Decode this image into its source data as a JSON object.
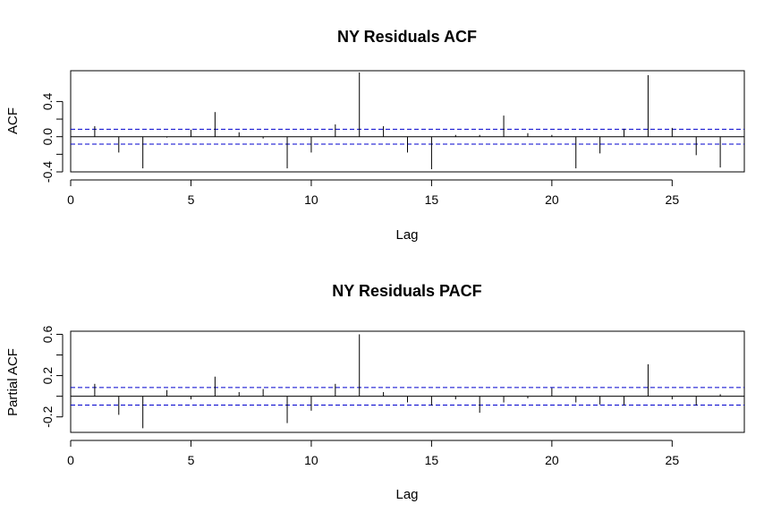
{
  "chart_data": [
    {
      "type": "bar",
      "title": "NY Residuals ACF",
      "xlabel": "Lag",
      "ylabel": "ACF",
      "xlim": [
        0,
        28
      ],
      "ylim": [
        -0.4,
        0.75
      ],
      "x_ticks": [
        "0",
        "5",
        "10",
        "15",
        "20",
        "25"
      ],
      "y_ticks": [
        "-0.4",
        "0.0",
        "0.4"
      ],
      "confidence_bound": 0.085,
      "confidence_color": "#0000cd",
      "x": [
        1,
        2,
        3,
        4,
        5,
        6,
        7,
        8,
        9,
        10,
        11,
        12,
        13,
        14,
        15,
        16,
        17,
        18,
        19,
        20,
        21,
        22,
        23,
        24,
        25,
        26,
        27
      ],
      "values": [
        0.12,
        -0.18,
        -0.36,
        -0.01,
        0.08,
        0.28,
        0.05,
        -0.02,
        -0.36,
        -0.18,
        0.14,
        0.73,
        0.12,
        -0.18,
        -0.37,
        0.02,
        0.02,
        0.24,
        0.04,
        0.02,
        -0.36,
        -0.19,
        0.09,
        0.7,
        0.1,
        -0.21,
        -0.35
      ]
    },
    {
      "type": "bar",
      "title": "NY Residuals PACF",
      "xlabel": "Lag",
      "ylabel": "Partial ACF",
      "xlim": [
        0,
        28
      ],
      "ylim": [
        -0.35,
        0.63
      ],
      "x_ticks": [
        "0",
        "5",
        "10",
        "15",
        "20",
        "25"
      ],
      "y_ticks": [
        "-0.2",
        "0.2",
        "0.6"
      ],
      "confidence_bound": 0.085,
      "confidence_color": "#0000cd",
      "x": [
        1,
        2,
        3,
        4,
        5,
        6,
        7,
        8,
        9,
        10,
        11,
        12,
        13,
        14,
        15,
        16,
        17,
        18,
        19,
        20,
        21,
        22,
        23,
        24,
        25,
        26,
        27
      ],
      "values": [
        0.12,
        -0.18,
        -0.31,
        0.06,
        -0.03,
        0.19,
        0.04,
        0.07,
        -0.26,
        -0.14,
        0.12,
        0.6,
        0.04,
        -0.06,
        -0.09,
        -0.03,
        -0.16,
        -0.06,
        -0.02,
        0.08,
        -0.06,
        -0.08,
        -0.09,
        0.31,
        -0.03,
        -0.09,
        0.02
      ]
    }
  ]
}
